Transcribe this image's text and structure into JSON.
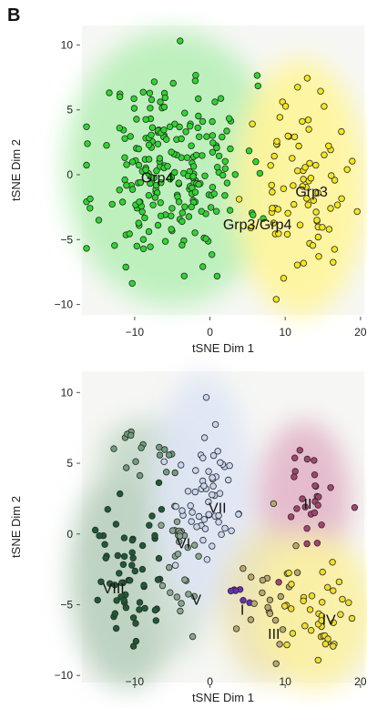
{
  "panel_letter": "B",
  "chart_data": [
    {
      "type": "scatter",
      "xlabel": "tSNE Dim 1",
      "ylabel": "tSNE Dim 2",
      "xlim": [
        -17,
        20.5
      ],
      "ylim": [
        -10.8,
        11.5
      ],
      "xticks": [
        -10,
        0,
        10,
        20
      ],
      "yticks": [
        -10,
        -5,
        0,
        5,
        10
      ],
      "grid": false,
      "annotations": [
        {
          "text": "Grp4",
          "x": -7,
          "y": -0.6
        },
        {
          "text": "Grp3",
          "x": 13.5,
          "y": -1.7
        },
        {
          "text": "Grp3/Grp4",
          "x": 6.3,
          "y": -4.2
        }
      ],
      "series": [
        {
          "name": "Grp4",
          "color": "#2ed62e",
          "n": 230,
          "cx": -5,
          "cy": 0.5,
          "sx": 6.5,
          "sy": 4.8,
          "seed": 11,
          "density": "#b8f0b8"
        },
        {
          "name": "Grp3",
          "color": "#f5e61c",
          "n": 80,
          "cx": 12,
          "cy": -1,
          "sx": 4,
          "sy": 4.5,
          "seed": 23,
          "density": "#fff59a"
        }
      ]
    },
    {
      "type": "scatter",
      "xlabel": "tSNE Dim 1",
      "ylabel": "tSNE Dim 2",
      "xlim": [
        -17,
        20.5
      ],
      "ylim": [
        -10.5,
        11.5
      ],
      "xticks": [
        -10,
        0,
        10,
        20
      ],
      "yticks": [
        -10,
        -5,
        0,
        5,
        10
      ],
      "grid": false,
      "annotations": [
        {
          "text": "VII",
          "x": 1,
          "y": 1.5
        },
        {
          "text": "II",
          "x": 13,
          "y": 1.8
        },
        {
          "text": "VI",
          "x": -3.5,
          "y": -1
        },
        {
          "text": "VIII",
          "x": -12.8,
          "y": -4.2
        },
        {
          "text": "V",
          "x": -1.8,
          "y": -5
        },
        {
          "text": "I",
          "x": 4.3,
          "y": -5.7
        },
        {
          "text": "III",
          "x": 8.5,
          "y": -7.4
        },
        {
          "text": "IV",
          "x": 15.8,
          "y": -6.4
        }
      ],
      "series": [
        {
          "name": "VIII",
          "color": "#1e5a34",
          "n": 60,
          "cx": -11,
          "cy": -3,
          "sx": 3.5,
          "sy": 3.6,
          "seed": 31,
          "density": "#b8cfbd"
        },
        {
          "name": "VI",
          "color": "#6e9e7c",
          "n": 18,
          "cx": -8,
          "cy": 5.5,
          "sx": 3,
          "sy": 1.2,
          "seed": 37,
          "density": "#c5d9c9"
        },
        {
          "name": "V",
          "color": "#88a890",
          "n": 28,
          "cx": -4,
          "cy": -2,
          "sx": 2,
          "sy": 3,
          "seed": 41,
          "density": "#d2e0d4"
        },
        {
          "name": "VII",
          "color": "#c8d6f0",
          "n": 55,
          "cx": -1,
          "cy": 3,
          "sx": 3,
          "sy": 3.8,
          "seed": 43,
          "density": "#dfe6f5"
        },
        {
          "name": "II",
          "color": "#a4446e",
          "n": 26,
          "cx": 12.5,
          "cy": 2.5,
          "sx": 2.8,
          "sy": 2.5,
          "seed": 47,
          "density": "#e2b6ca"
        },
        {
          "name": "I",
          "color": "#6a2fb5",
          "n": 6,
          "cx": 4,
          "cy": -4.2,
          "sx": 1.2,
          "sy": 0.6,
          "seed": 53,
          "density": "#d4c4ea"
        },
        {
          "name": "III",
          "color": "#b8a86a",
          "n": 22,
          "cx": 8,
          "cy": -5,
          "sx": 3,
          "sy": 2.5,
          "seed": 59,
          "density": "#ece3b5"
        },
        {
          "name": "IV",
          "color": "#f0dc2a",
          "n": 38,
          "cx": 14,
          "cy": -5.5,
          "sx": 3.5,
          "sy": 2.5,
          "seed": 61,
          "density": "#fbf1a2"
        }
      ]
    }
  ]
}
